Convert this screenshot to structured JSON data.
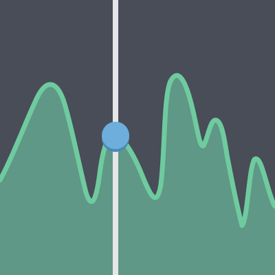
{
  "colors": {
    "background": "#484d58",
    "waveform_fill": "#5f9886",
    "waveform_stroke": "#6fcb9f",
    "playhead_line": "#e6e6e6",
    "playhead_handle": "#6eaedd",
    "playhead_handle_shadow": "#4a88b4"
  },
  "icons": {
    "playhead_handle": "circle-handle-icon"
  },
  "playhead": {
    "position_fraction": 0.42
  }
}
